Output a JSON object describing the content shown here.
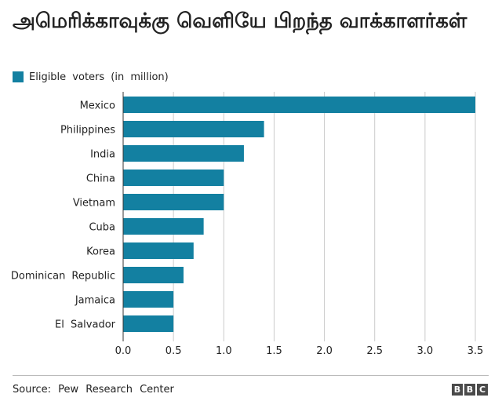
{
  "title": "அமெரிக்காவுக்கு வெளியே பிறந்த வாக்காளர்கள்",
  "source": "Source: Pew Research Center",
  "logo": [
    "B",
    "B",
    "C"
  ],
  "colors": {
    "bar": "#1380A1",
    "grid": "#cbcbcb",
    "axis": "#333333"
  },
  "chart_data": {
    "type": "bar",
    "orientation": "horizontal",
    "categories": [
      "Mexico",
      "Philippines",
      "India",
      "China",
      "Vietnam",
      "Cuba",
      "Korea",
      "Dominican Republic",
      "Jamaica",
      "El Salvador"
    ],
    "series": [
      {
        "name": "Eligible voters (in million)",
        "values": [
          3.5,
          1.4,
          1.2,
          1.0,
          1.0,
          0.8,
          0.7,
          0.6,
          0.5,
          0.5
        ]
      }
    ],
    "xlim": [
      0,
      3.5
    ],
    "xticks": [
      "0.0",
      "0.5",
      "1.0",
      "1.5",
      "2.0",
      "2.5",
      "3.0",
      "3.5"
    ],
    "grid": true,
    "legend": "top-left"
  }
}
